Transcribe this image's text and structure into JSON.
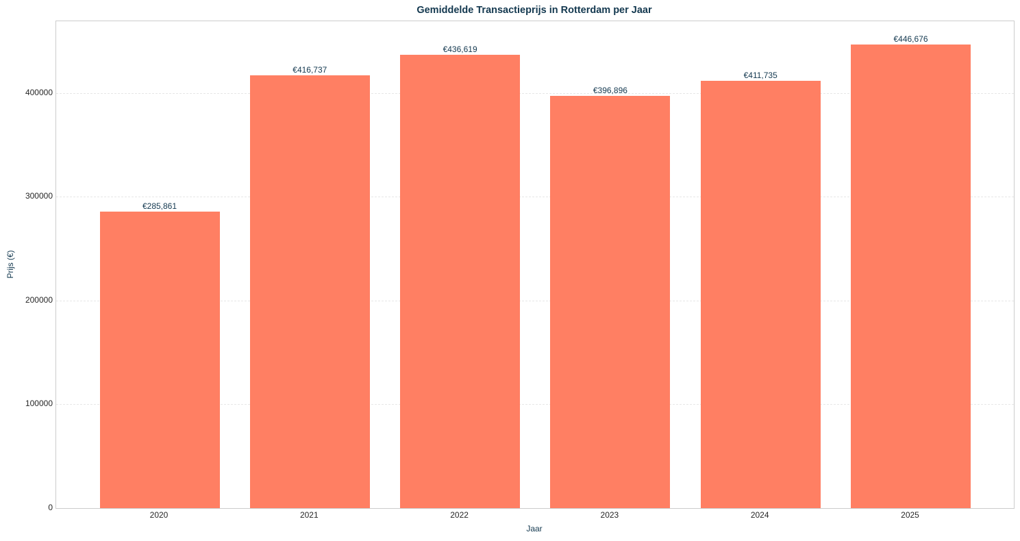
{
  "chart_data": {
    "type": "bar",
    "title": "Gemiddelde Transactieprijs in Rotterdam per Jaar",
    "xlabel": "Jaar",
    "ylabel": "Prijs (€)",
    "categories": [
      "2020",
      "2021",
      "2022",
      "2023",
      "2024",
      "2025"
    ],
    "values": [
      285861,
      416737,
      436619,
      396896,
      411735,
      446676
    ],
    "value_labels": [
      "€285,861",
      "€416,737",
      "€436,619",
      "€396,896",
      "€411,735",
      "€446,676"
    ],
    "ylim": [
      0,
      469000
    ],
    "yticks": [
      0,
      100000,
      200000,
      300000,
      400000
    ],
    "ytick_labels": [
      "0",
      "100000",
      "200000",
      "300000",
      "400000"
    ],
    "grid": {
      "y": true,
      "x": false,
      "style": "dashed"
    },
    "legend": null,
    "bar_color": "#ff7f63"
  },
  "colors": {
    "bar": "#ff7f63",
    "title": "#13384f",
    "axis_label": "#13384f",
    "tick_label": "#262626",
    "frame": "#cccccc",
    "grid": "#e6e6e6"
  }
}
